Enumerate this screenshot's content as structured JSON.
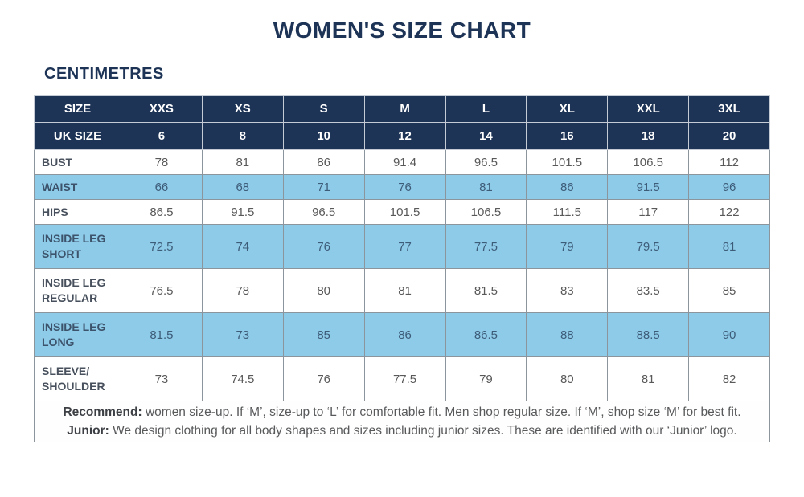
{
  "page": {
    "title": "WOMEN'S SIZE CHART",
    "unit_label": "CENTIMETRES"
  },
  "colors": {
    "navy": "#1e3456",
    "light_blue": "#8ecbe9"
  },
  "size_chart": {
    "header_rows": [
      {
        "label": "SIZE",
        "values": [
          "XXS",
          "XS",
          "S",
          "M",
          "L",
          "XL",
          "XXL",
          "3XL"
        ]
      },
      {
        "label": "UK SIZE",
        "values": [
          "6",
          "8",
          "10",
          "12",
          "14",
          "16",
          "18",
          "20"
        ]
      }
    ],
    "rows": [
      {
        "label": "BUST",
        "values": [
          "78",
          "81",
          "86",
          "91.4",
          "96.5",
          "101.5",
          "106.5",
          "112"
        ],
        "highlight": false,
        "tall": false
      },
      {
        "label": "WAIST",
        "values": [
          "66",
          "68",
          "71",
          "76",
          "81",
          "86",
          "91.5",
          "96"
        ],
        "highlight": true,
        "tall": false
      },
      {
        "label": "HIPS",
        "values": [
          "86.5",
          "91.5",
          "96.5",
          "101.5",
          "106.5",
          "111.5",
          "117",
          "122"
        ],
        "highlight": false,
        "tall": false
      },
      {
        "label": "INSIDE LEG\nSHORT",
        "values": [
          "72.5",
          "74",
          "76",
          "77",
          "77.5",
          "79",
          "79.5",
          "81"
        ],
        "highlight": true,
        "tall": true
      },
      {
        "label": "INSIDE LEG\nREGULAR",
        "values": [
          "76.5",
          "78",
          "80",
          "81",
          "81.5",
          "83",
          "83.5",
          "85"
        ],
        "highlight": false,
        "tall": true
      },
      {
        "label": "INSIDE LEG\nLONG",
        "values": [
          "81.5",
          "73",
          "85",
          "86",
          "86.5",
          "88",
          "88.5",
          "90"
        ],
        "highlight": true,
        "tall": true
      },
      {
        "label": "SLEEVE/\nSHOULDER",
        "values": [
          "73",
          "74.5",
          "76",
          "77.5",
          "79",
          "80",
          "81",
          "82"
        ],
        "highlight": false,
        "tall": true
      }
    ],
    "notes": [
      {
        "bold": "Recommend:",
        "text": " women size-up. If ‘M’, size-up to ‘L’ for comfortable fit. Men shop regular size. If ‘M’, shop size ‘M’ for best fit."
      },
      {
        "bold": "Junior:",
        "text": " We design clothing for all body shapes and sizes including junior sizes. These are identified with our ‘Junior’ logo."
      }
    ]
  }
}
